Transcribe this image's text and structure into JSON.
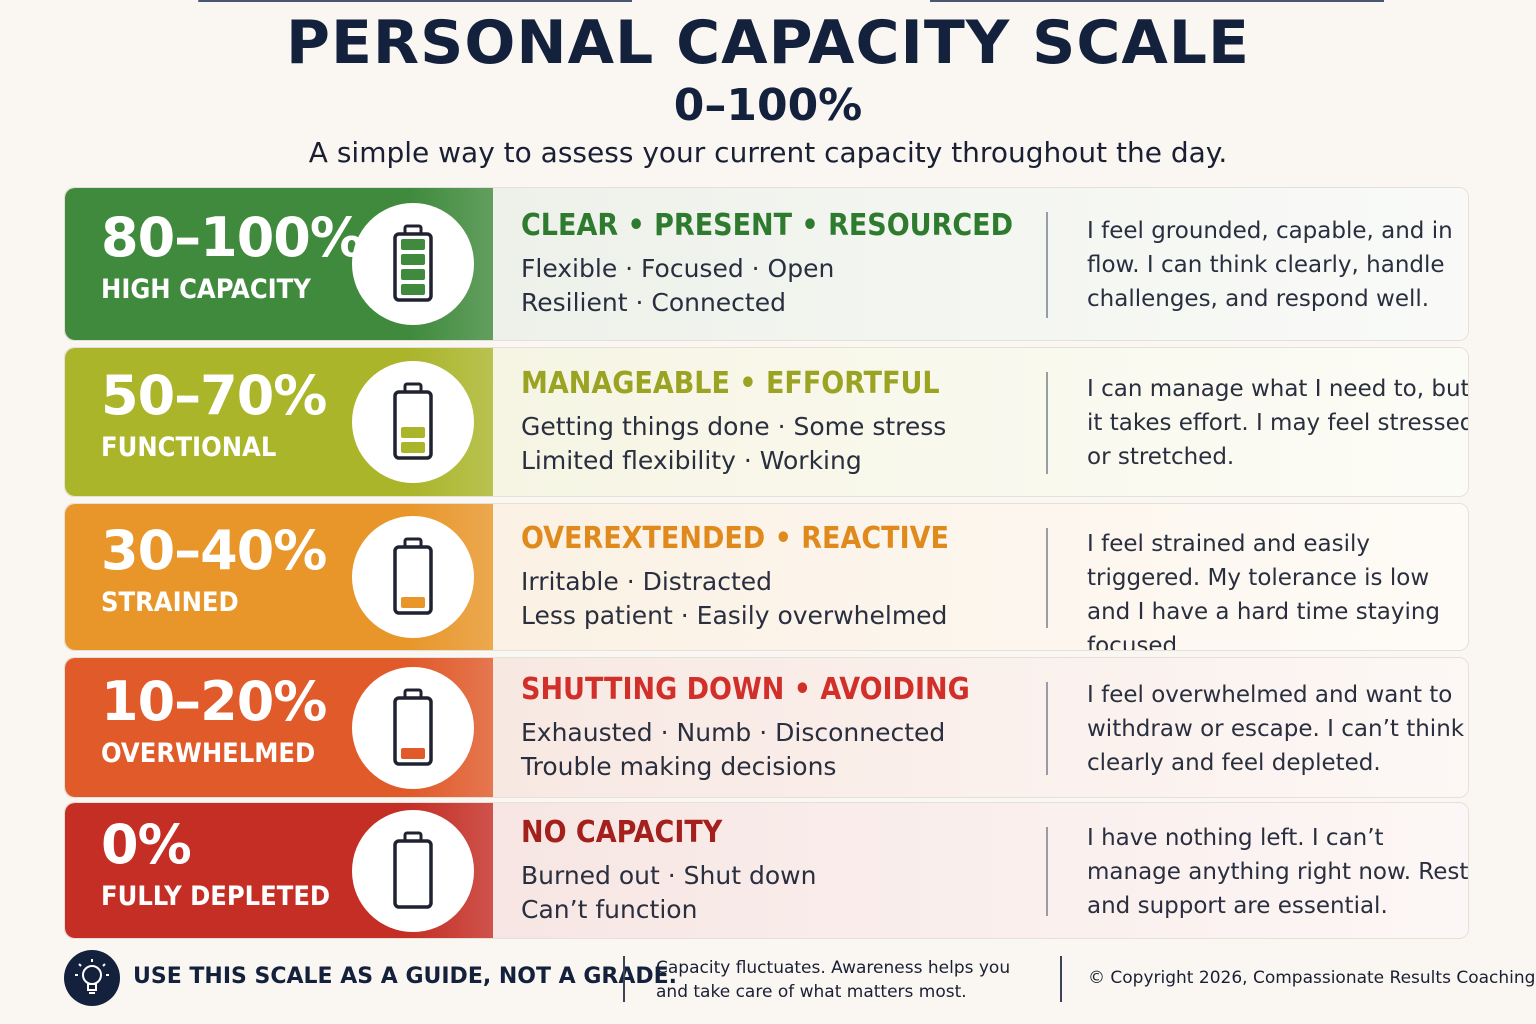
{
  "header": {
    "title": "PERSONAL CAPACITY SCALE",
    "range": "0–100%",
    "subtitle": "A simple way to assess your current capacity throughout the day."
  },
  "levels": [
    {
      "percent": "80–100%",
      "label": "HIGH CAPACITY",
      "tags": "CLEAR • PRESENT • RESOURCED",
      "line1": "Flexible · Focused · Open",
      "line2": "Resilient · Connected",
      "desc": "I feel grounded, capable, and in flow. I can think clearly, handle challenges, and respond well.",
      "color": "#3f8a3c",
      "tag_color": "#2e7a2f",
      "bg": "#eef1ea",
      "icon": "battery-full-icon",
      "battery_level": 1.0
    },
    {
      "percent": "50–70%",
      "label": "FUNCTIONAL",
      "tags": "MANAGEABLE • EFFORTFUL",
      "line1": "Getting things done · Some stress",
      "line2": "Limited flexibility · Working",
      "desc": "I can manage what I need to, but it takes effort. I may feel stressed or stretched.",
      "color": "#aab52a",
      "tag_color": "#9aa322",
      "bg": "#f6f5e4",
      "icon": "battery-half-icon",
      "battery_level": 0.6
    },
    {
      "percent": "30–40%",
      "label": "STRAINED",
      "tags": "OVEREXTENDED • REACTIVE",
      "line1": "Irritable · Distracted",
      "line2": "Less patient · Easily overwhelmed",
      "desc": "I feel strained and easily triggered. My tolerance is low and I have a hard time staying focused.",
      "color": "#e8962a",
      "tag_color": "#e08a1e",
      "bg": "#fbf1e4",
      "icon": "battery-low-icon",
      "battery_level": 0.35
    },
    {
      "percent": "10–20%",
      "label": "OVERWHELMED",
      "tags": "SHUTTING DOWN • AVOIDING",
      "line1": "Exhausted · Numb · Disconnected",
      "line2": "Trouble making decisions",
      "desc": "I feel overwhelmed and want to withdraw or escape. I can’t think clearly and feel depleted.",
      "color": "#e05a2a",
      "tag_color": "#d1302a",
      "bg": "#f8e8e2",
      "icon": "battery-critical-icon",
      "battery_level": 0.15
    },
    {
      "percent": "0%",
      "label": "FULLY DEPLETED",
      "tags": "NO CAPACITY",
      "line1": "Burned out · Shut down",
      "line2": "Can’t function",
      "desc": "I have nothing left. I can’t manage anything right now. Rest and support are essential.",
      "color": "#c42e25",
      "tag_color": "#a3201c",
      "bg": "#f7e6e3",
      "icon": "battery-empty-icon",
      "battery_level": 0.0
    }
  ],
  "footer": {
    "main": "USE THIS SCALE AS A GUIDE, NOT A GRADE.",
    "note": "Capacity fluctuates. Awareness helps you and take care of what matters most.",
    "copyright": "© Copyright 2026, Compassionate Results Coaching",
    "icon": "lightbulb-icon"
  }
}
